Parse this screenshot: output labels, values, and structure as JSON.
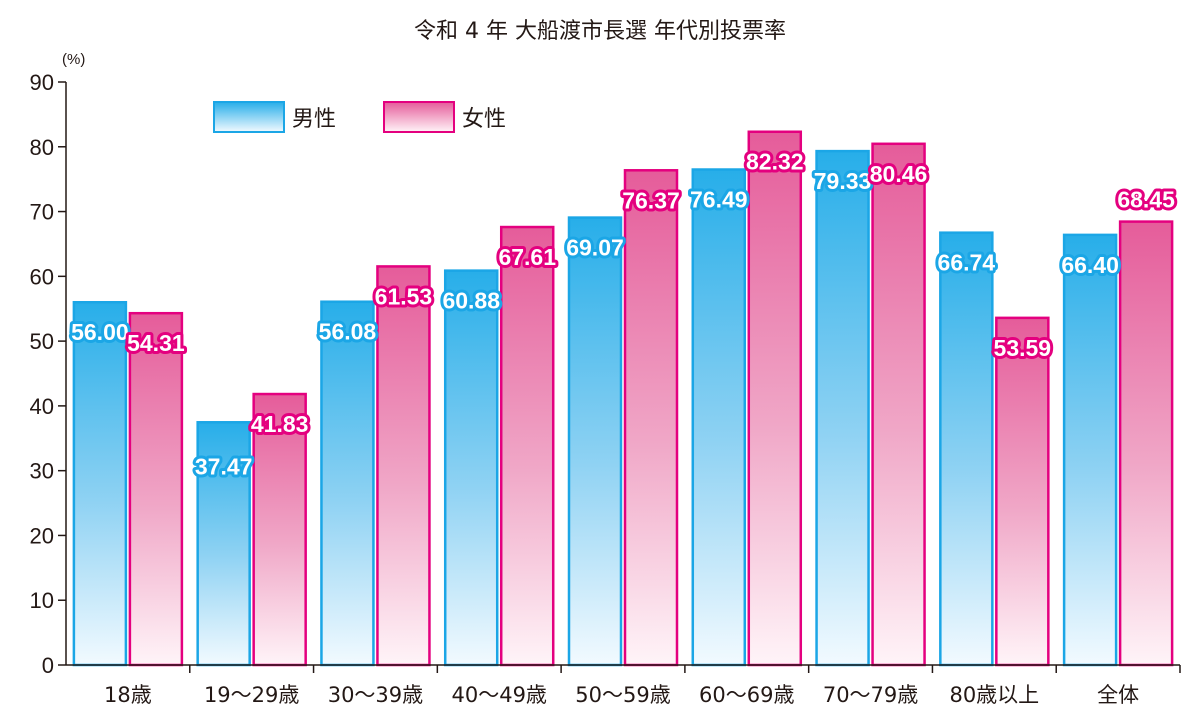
{
  "chart_data": {
    "type": "bar",
    "title": "令和 4 年 大船渡市長選 年代別投票率",
    "ylabel": "(%)",
    "xlabel": "",
    "ylim": [
      0,
      90
    ],
    "yticks": [
      0,
      10,
      20,
      30,
      40,
      50,
      60,
      70,
      80,
      90
    ],
    "grid": false,
    "legend_position": "top-left",
    "categories": [
      "18歳",
      "19～29歳",
      "30～39歳",
      "40～49歳",
      "50～59歳",
      "60～69歳",
      "70～79歳",
      "80歳以上",
      "全体"
    ],
    "series": [
      {
        "name": "男性",
        "color": "#1ba6e6",
        "labels": [
          "56.00",
          "37.47",
          "56.08",
          "60.88",
          "69.07",
          "76.49",
          "79.33",
          "66.74",
          "66.40"
        ],
        "values": [
          56.0,
          37.47,
          56.08,
          60.88,
          69.07,
          76.49,
          79.33,
          66.74,
          66.4
        ]
      },
      {
        "name": "女性",
        "color": "#e4007f",
        "labels": [
          "54.31",
          "41.83",
          "61.53",
          "67.61",
          "76.37",
          "82.32",
          "80.46",
          "53.59",
          "68.45"
        ],
        "values": [
          54.31,
          41.83,
          61.53,
          67.61,
          76.37,
          82.32,
          80.46,
          53.59,
          68.45
        ]
      }
    ]
  }
}
